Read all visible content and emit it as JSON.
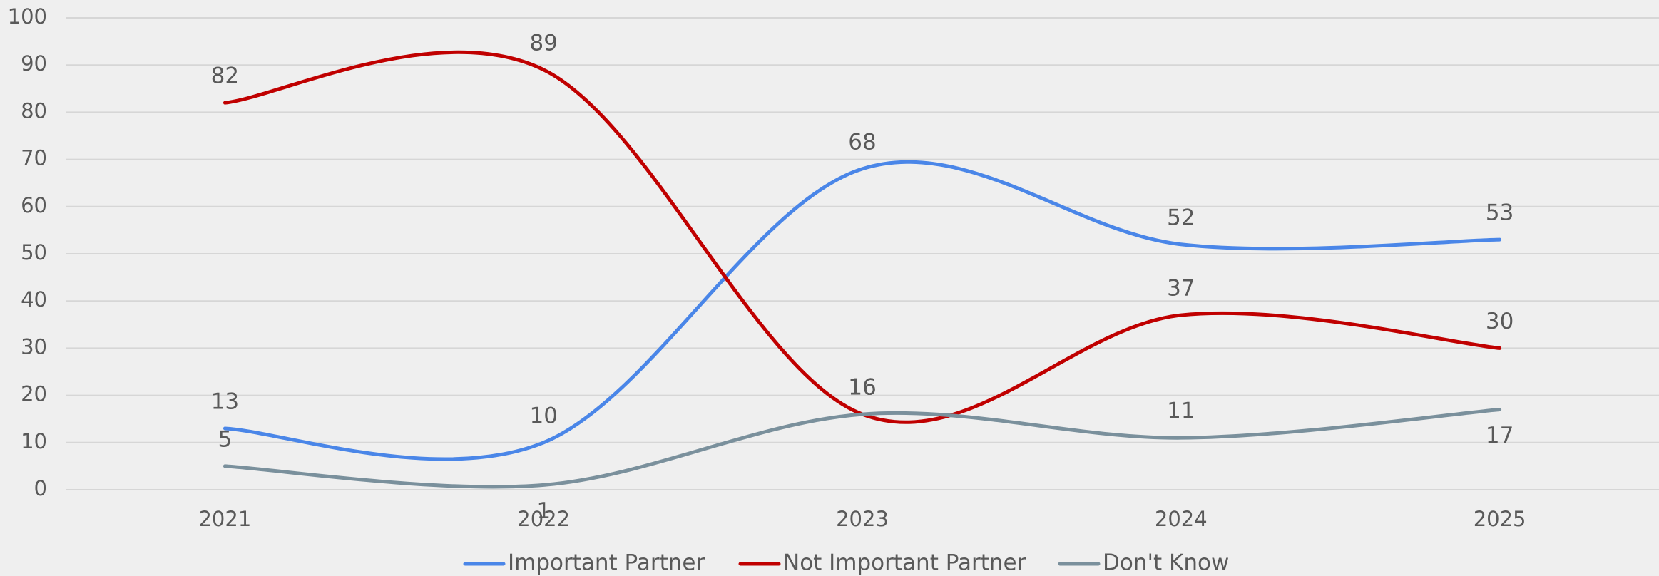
{
  "chart_data": {
    "type": "line",
    "categories": [
      "2021",
      "2022",
      "2023",
      "2024",
      "2025"
    ],
    "series": [
      {
        "name": "Important Partner",
        "color": "#4a86e8",
        "values": [
          13,
          10,
          68,
          52,
          53
        ]
      },
      {
        "name": "Not Important Partner",
        "color": "#c00000",
        "values": [
          82,
          89,
          16,
          37,
          30
        ]
      },
      {
        "name": "Don't Know",
        "color": "#7a909c",
        "values": [
          5,
          1,
          16,
          11,
          17
        ]
      }
    ],
    "ylim": [
      0,
      100
    ],
    "yticks": [
      0,
      10,
      20,
      30,
      40,
      50,
      60,
      70,
      80,
      90,
      100
    ],
    "grid": true,
    "legend": "bottom"
  }
}
